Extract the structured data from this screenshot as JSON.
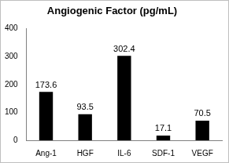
{
  "chart_data": {
    "type": "bar",
    "title": "Angiogenic Factor (pg/mL)",
    "categories": [
      "Ang-1",
      "HGF",
      "IL-6",
      "SDF-1",
      "VEGF"
    ],
    "values": [
      173.6,
      93.5,
      302.4,
      17.1,
      70.5
    ],
    "color": "#000000",
    "ylim": [
      0,
      400
    ],
    "yticks": [
      0,
      100,
      200,
      300,
      400
    ],
    "grid": false,
    "data_labels": true
  }
}
